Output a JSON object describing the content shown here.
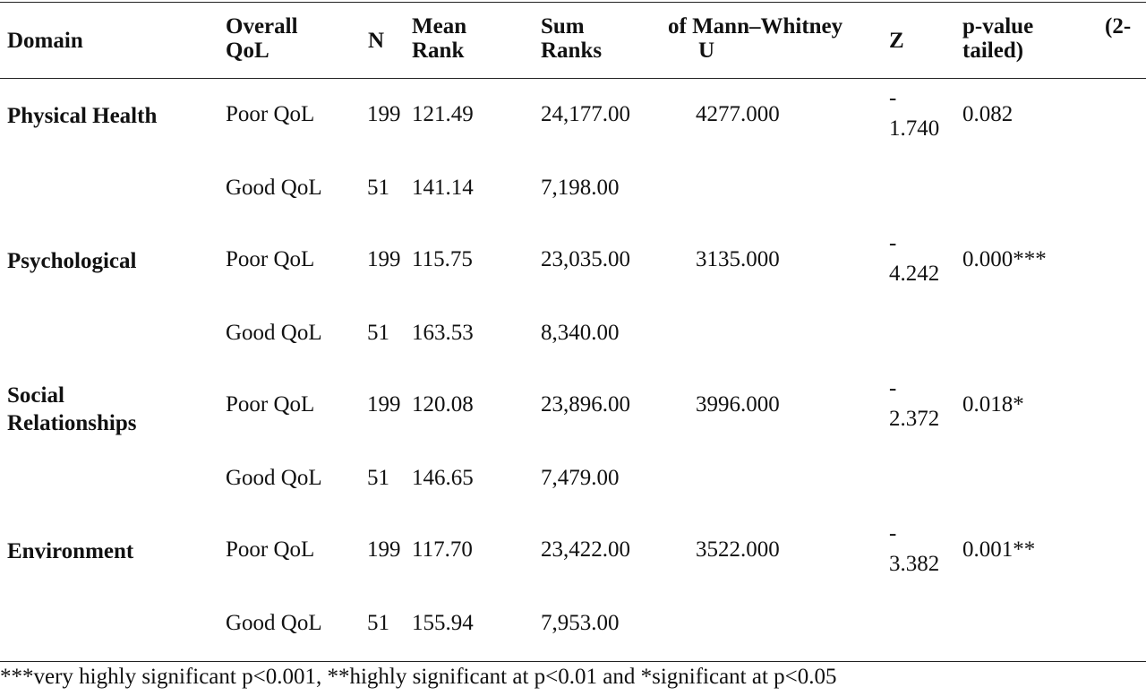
{
  "table": {
    "headers": {
      "domain": "Domain",
      "overall_qol": [
        "Overall",
        "QoL"
      ],
      "n": "N",
      "mean_rank": [
        "Mean",
        "Rank"
      ],
      "sum_ranks": [
        "Sum",
        "Ranks"
      ],
      "mann_whitney": [
        "of Mann–Whitney",
        "U"
      ],
      "z": "Z",
      "p_value_a": "p-value",
      "p_value_b": "(2-",
      "p_value_c": "tailed)"
    },
    "groups": [
      {
        "domain": [
          "Physical Health"
        ],
        "u": "4277.000",
        "z_sign": "-",
        "z_val": "1.740",
        "p": "0.082",
        "rows": [
          {
            "qol": "Poor QoL",
            "n": "199",
            "mean": "121.49",
            "sum": "24,177.00"
          },
          {
            "qol": "Good QoL",
            "n": "51",
            "mean": "141.14",
            "sum": "7,198.00"
          }
        ]
      },
      {
        "domain": [
          "Psychological"
        ],
        "u": "3135.000",
        "z_sign": "-",
        "z_val": "4.242",
        "p": "0.000***",
        "rows": [
          {
            "qol": "Poor QoL",
            "n": "199",
            "mean": "115.75",
            "sum": "23,035.00"
          },
          {
            "qol": "Good QoL",
            "n": "51",
            "mean": "163.53",
            "sum": "8,340.00"
          }
        ]
      },
      {
        "domain": [
          "Social",
          "Relationships"
        ],
        "u": "3996.000",
        "z_sign": "-",
        "z_val": "2.372",
        "p": "0.018*",
        "rows": [
          {
            "qol": "Poor QoL",
            "n": "199",
            "mean": "120.08",
            "sum": "23,896.00"
          },
          {
            "qol": "Good QoL",
            "n": "51",
            "mean": "146.65",
            "sum": "7,479.00"
          }
        ]
      },
      {
        "domain": [
          "Environment"
        ],
        "u": "3522.000",
        "z_sign": "-",
        "z_val": "3.382",
        "p": "0.001**",
        "rows": [
          {
            "qol": "Poor QoL",
            "n": "199",
            "mean": "117.70",
            "sum": "23,422.00"
          },
          {
            "qol": "Good QoL",
            "n": "51",
            "mean": "155.94",
            "sum": "7,953.00"
          }
        ]
      }
    ]
  },
  "footnote": "***very highly significant p<0.001, **highly significant at p<0.01 and *significant at p<0.05"
}
